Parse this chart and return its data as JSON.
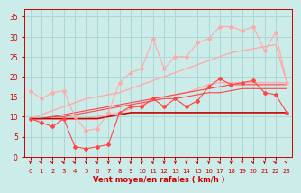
{
  "x": [
    0,
    1,
    2,
    3,
    4,
    5,
    6,
    7,
    8,
    9,
    10,
    11,
    12,
    13,
    14,
    15,
    16,
    17,
    18,
    19,
    20,
    21,
    22,
    23
  ],
  "series": [
    {
      "name": "rafales_light_marker",
      "color": "#ffaaaa",
      "linewidth": 0.8,
      "marker": "D",
      "markersize": 2.0,
      "y": [
        16.5,
        14.5,
        16.0,
        16.5,
        10.0,
        6.5,
        7.0,
        11.0,
        18.5,
        21.0,
        22.0,
        29.5,
        22.0,
        25.0,
        25.0,
        28.5,
        29.5,
        32.5,
        32.5,
        31.5,
        32.5,
        26.5,
        31.0,
        18.5
      ]
    },
    {
      "name": "trend_light1",
      "color": "#ffaaaa",
      "linewidth": 1.0,
      "marker": null,
      "y": [
        9.5,
        10.5,
        11.5,
        12.5,
        13.5,
        14.5,
        15.0,
        15.5,
        16.0,
        17.0,
        18.0,
        19.0,
        20.0,
        21.0,
        22.0,
        23.0,
        24.0,
        25.0,
        26.0,
        26.5,
        27.0,
        27.5,
        28.0,
        18.5
      ]
    },
    {
      "name": "trend_light2",
      "color": "#ffaaaa",
      "linewidth": 1.0,
      "marker": null,
      "y": [
        9.5,
        9.5,
        9.5,
        9.5,
        9.5,
        9.5,
        10.0,
        10.5,
        11.0,
        12.0,
        13.0,
        14.0,
        15.0,
        15.5,
        16.0,
        17.0,
        18.0,
        18.5,
        18.5,
        18.5,
        18.5,
        18.5,
        18.5,
        18.5
      ]
    },
    {
      "name": "vent_medium_marker",
      "color": "#ff4444",
      "linewidth": 0.8,
      "marker": "D",
      "markersize": 2.0,
      "y": [
        9.5,
        8.5,
        7.5,
        9.5,
        2.5,
        2.0,
        2.5,
        3.0,
        11.0,
        12.5,
        12.5,
        14.5,
        12.5,
        14.5,
        12.5,
        14.0,
        17.5,
        19.5,
        18.0,
        18.5,
        19.0,
        16.0,
        15.5,
        11.0
      ]
    },
    {
      "name": "trend_medium1",
      "color": "#ff4444",
      "linewidth": 0.8,
      "marker": null,
      "y": [
        9.5,
        9.5,
        10.0,
        10.5,
        11.0,
        11.5,
        12.0,
        12.5,
        13.0,
        13.5,
        14.0,
        14.5,
        15.0,
        15.5,
        16.0,
        16.5,
        17.0,
        17.5,
        18.0,
        18.0,
        18.0,
        18.0,
        18.0,
        18.0
      ]
    },
    {
      "name": "trend_medium2",
      "color": "#ff4444",
      "linewidth": 0.8,
      "marker": null,
      "y": [
        9.5,
        9.5,
        10.0,
        10.0,
        10.5,
        11.0,
        11.5,
        12.0,
        12.5,
        13.0,
        13.5,
        14.0,
        14.5,
        14.5,
        15.0,
        15.5,
        16.0,
        16.0,
        16.5,
        17.0,
        17.0,
        17.0,
        17.0,
        17.0
      ]
    },
    {
      "name": "flat_dark",
      "color": "#cc0000",
      "linewidth": 1.2,
      "marker": null,
      "y": [
        9.5,
        9.5,
        9.5,
        9.5,
        9.5,
        9.5,
        9.5,
        10.0,
        10.5,
        11.0,
        11.0,
        11.0,
        11.0,
        11.0,
        11.0,
        11.0,
        11.0,
        11.0,
        11.0,
        11.0,
        11.0,
        11.0,
        11.0,
        11.0
      ]
    }
  ],
  "arrow_directions": [
    0,
    1,
    1,
    1,
    1,
    2,
    1,
    0,
    0,
    0,
    0,
    1,
    2,
    0,
    0,
    1,
    0,
    1,
    0,
    0,
    1,
    0,
    1,
    1
  ],
  "xlabel": "Vent moyen/en rafales ( km/h )",
  "ylim": [
    0,
    37
  ],
  "xlim": [
    -0.5,
    23.5
  ],
  "yticks": [
    0,
    5,
    10,
    15,
    20,
    25,
    30,
    35
  ],
  "xticks": [
    0,
    1,
    2,
    3,
    4,
    5,
    6,
    7,
    8,
    9,
    10,
    11,
    12,
    13,
    14,
    15,
    16,
    17,
    18,
    19,
    20,
    21,
    22,
    23
  ],
  "background_color": "#ccecea",
  "grid_color": "#aad8d4",
  "arrow_color": "#cc0000",
  "label_color": "#cc0000",
  "tick_color": "#cc0000"
}
